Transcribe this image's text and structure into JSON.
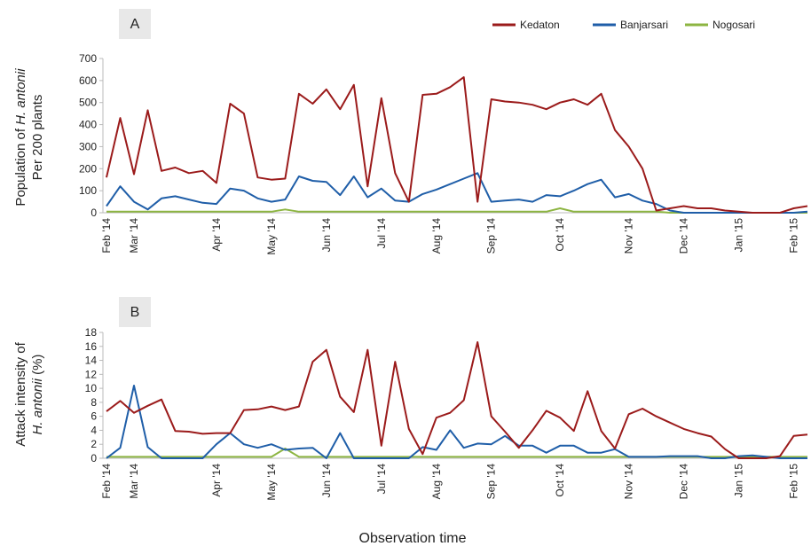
{
  "chart_data": [
    {
      "type": "line",
      "label": "A",
      "ylabel": [
        [
          "Population of ",
          "H. antonii"
        ],
        [
          "Per 200 plants"
        ]
      ],
      "categories": [
        "Feb '14",
        null,
        "Mar '14",
        null,
        null,
        null,
        null,
        null,
        "Apr '14",
        null,
        null,
        null,
        "May '14",
        null,
        null,
        null,
        "Jun '14",
        null,
        null,
        null,
        "Jul '14",
        null,
        null,
        null,
        "Aug '14",
        null,
        null,
        null,
        "Sep '14",
        null,
        null,
        null,
        null,
        "Oct '14",
        null,
        null,
        null,
        null,
        "Nov '14",
        null,
        null,
        null,
        "Dec '14",
        null,
        null,
        null,
        "Jan '15",
        null,
        null,
        null,
        "Feb '15",
        null
      ],
      "series": [
        {
          "name": "Kedaton",
          "color": "#9b1b1b",
          "values": [
            160,
            430,
            175,
            465,
            190,
            205,
            180,
            190,
            135,
            495,
            450,
            160,
            150,
            155,
            540,
            495,
            560,
            470,
            580,
            120,
            520,
            180,
            50,
            535,
            540,
            570,
            615,
            50,
            515,
            505,
            500,
            490,
            470,
            500,
            515,
            490,
            540,
            375,
            300,
            200,
            10,
            20,
            30,
            20,
            20,
            10,
            5,
            0,
            0,
            0,
            20,
            30
          ]
        },
        {
          "name": "Banjarsari",
          "color": "#1f5ea8",
          "values": [
            30,
            120,
            50,
            15,
            65,
            75,
            60,
            45,
            40,
            110,
            100,
            65,
            50,
            60,
            165,
            145,
            140,
            80,
            165,
            70,
            110,
            55,
            50,
            85,
            105,
            130,
            155,
            180,
            50,
            55,
            60,
            50,
            80,
            75,
            100,
            130,
            150,
            70,
            85,
            55,
            40,
            10,
            0,
            0,
            0,
            0,
            0,
            0,
            0,
            0,
            0,
            5
          ]
        },
        {
          "name": "Nogosari",
          "color": "#8db542",
          "values": [
            5,
            5,
            5,
            5,
            5,
            5,
            5,
            5,
            5,
            5,
            5,
            5,
            5,
            15,
            5,
            5,
            5,
            5,
            5,
            5,
            5,
            5,
            5,
            5,
            5,
            5,
            5,
            5,
            5,
            5,
            5,
            5,
            5,
            20,
            5,
            5,
            5,
            5,
            5,
            5,
            5,
            0,
            0,
            0,
            0,
            0,
            0,
            0,
            0,
            0,
            0,
            0
          ]
        }
      ],
      "ylim": [
        0,
        700
      ],
      "yticks": [
        0,
        100,
        200,
        300,
        400,
        500,
        600,
        700
      ]
    },
    {
      "type": "line",
      "label": "B",
      "ylabel": [
        [
          "Attack intensity of"
        ],
        [
          "H. antonii",
          " (%)"
        ]
      ],
      "categories": [
        "Feb '14",
        null,
        "Mar '14",
        null,
        null,
        null,
        null,
        null,
        "Apr '14",
        null,
        null,
        null,
        "May '14",
        null,
        null,
        null,
        "Jun '14",
        null,
        null,
        null,
        "Jul '14",
        null,
        null,
        null,
        "Aug '14",
        null,
        null,
        null,
        "Sep '14",
        null,
        null,
        null,
        null,
        "Oct '14",
        null,
        null,
        null,
        null,
        "Nov '14",
        null,
        null,
        null,
        "Dec '14",
        null,
        null,
        null,
        "Jan '15",
        null,
        null,
        null,
        "Feb '15",
        null
      ],
      "series": [
        {
          "color": "#9b1b1b",
          "values": [
            6.7,
            8.2,
            6.5,
            7.5,
            8.4,
            3.9,
            3.8,
            3.5,
            3.6,
            3.6,
            6.9,
            7.0,
            7.4,
            6.9,
            7.4,
            13.8,
            15.5,
            8.8,
            6.6,
            15.5,
            1.8,
            13.8,
            4.2,
            0.6,
            5.8,
            6.5,
            8.3,
            16.6,
            6.0,
            3.8,
            1.5,
            4.0,
            6.8,
            5.8,
            3.9,
            9.6,
            3.9,
            1.4,
            6.3,
            7.1,
            6.0,
            5.1,
            4.2,
            3.6,
            3.1,
            1.3,
            0,
            0,
            0,
            0.3,
            3.2,
            3.4
          ]
        },
        {
          "color": "#1f5ea8",
          "values": [
            0,
            1.5,
            10.4,
            1.6,
            0,
            0,
            0,
            0,
            2,
            3.6,
            2,
            1.5,
            2,
            1.2,
            1.4,
            1.5,
            0,
            3.6,
            0,
            0,
            0,
            0,
            0,
            1.6,
            1.2,
            4.0,
            1.5,
            2.1,
            2.0,
            3.2,
            1.8,
            1.8,
            0.8,
            1.8,
            1.8,
            0.8,
            0.8,
            1.3,
            0.2,
            0.2,
            0.2,
            0.3,
            0.3,
            0.3,
            0,
            0,
            0.3,
            0.4,
            0.2,
            0,
            0,
            0
          ]
        },
        {
          "color": "#8db542",
          "values": [
            0.2,
            0.2,
            0.2,
            0.2,
            0.2,
            0.2,
            0.2,
            0.2,
            0.2,
            0.2,
            0.2,
            0.2,
            0.2,
            1.4,
            0.2,
            0.2,
            0.2,
            0.2,
            0.2,
            0.2,
            0.2,
            0.2,
            0.2,
            0.2,
            0.2,
            0.2,
            0.2,
            0.2,
            0.2,
            0.2,
            0.2,
            0.2,
            0.2,
            0.2,
            0.2,
            0.2,
            0.2,
            0.2,
            0.2,
            0.2,
            0.2,
            0.2,
            0.2,
            0.2,
            0.2,
            0.2,
            0.2,
            0.2,
            0.2,
            0.2,
            0.2,
            0.2
          ]
        }
      ],
      "ylim": [
        0,
        18
      ],
      "yticks": [
        0,
        2,
        4,
        6,
        8,
        10,
        12,
        14,
        16,
        18
      ]
    }
  ],
  "xlabel": "Observation time"
}
